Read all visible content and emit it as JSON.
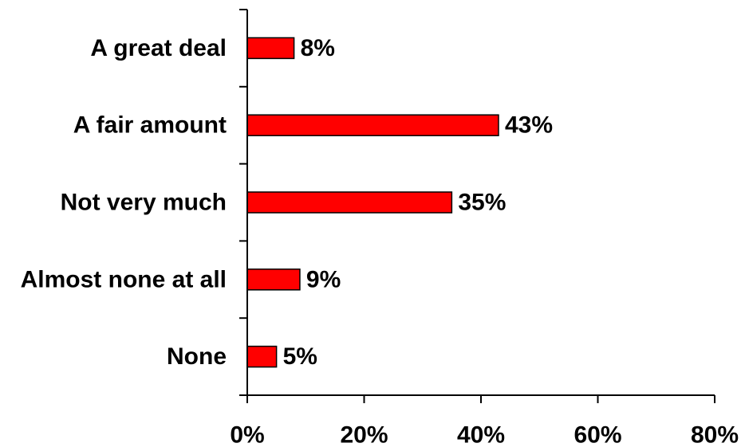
{
  "chart_data": {
    "type": "bar",
    "orientation": "horizontal",
    "categories": [
      "A great deal",
      "A fair amount",
      "Not very much",
      "Almost none at all",
      "None"
    ],
    "values": [
      8,
      43,
      35,
      9,
      5
    ],
    "value_labels": [
      "8%",
      "43%",
      "35%",
      "9%",
      "5%"
    ],
    "xlim": [
      0,
      80
    ],
    "x_ticks": [
      0,
      20,
      40,
      60,
      80
    ],
    "x_tick_labels": [
      "0%",
      "20%",
      "40%",
      "60%",
      "80%"
    ],
    "title": "",
    "xlabel": "",
    "ylabel": "",
    "grid": false,
    "bar_color": "#ff0000",
    "bar_border_color": "#000000"
  }
}
